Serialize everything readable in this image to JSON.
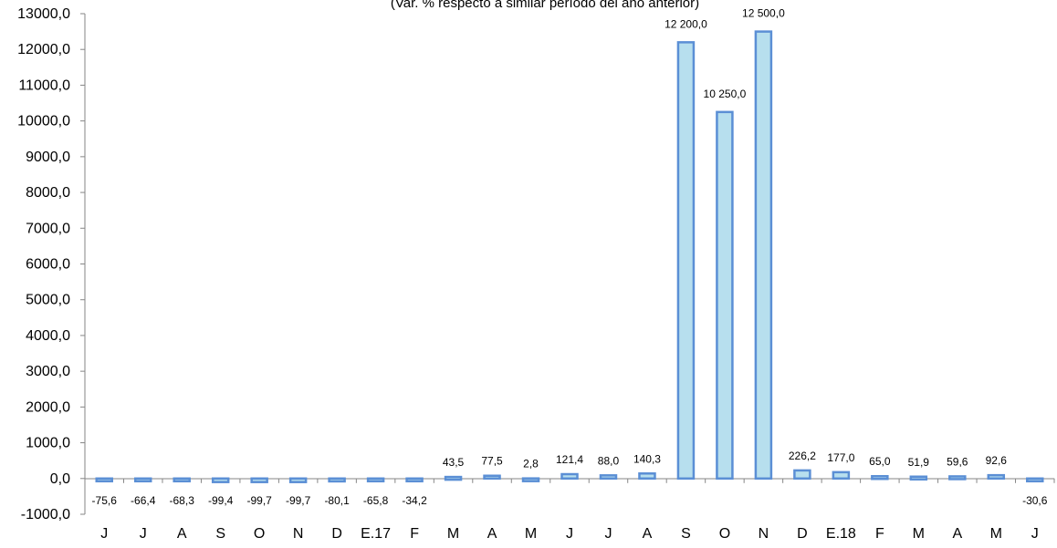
{
  "chart_data": {
    "type": "bar",
    "subtitle": "(Var. % respecto a similar período del año anterior)",
    "categories": [
      "J",
      "J",
      "A",
      "S",
      "O",
      "N",
      "D",
      "E.17",
      "F",
      "M",
      "A",
      "M",
      "J",
      "J",
      "A",
      "S",
      "O",
      "N",
      "D",
      "E.18",
      "F",
      "M",
      "A",
      "M",
      "J"
    ],
    "values": [
      -75.6,
      -66.4,
      -68.3,
      -99.4,
      -99.7,
      -99.7,
      -80.1,
      -65.8,
      -34.2,
      43.5,
      77.5,
      2.8,
      121.4,
      88.0,
      140.3,
      12200.0,
      10250.0,
      12500.0,
      226.2,
      177.0,
      65.0,
      51.9,
      59.6,
      92.6,
      -30.6
    ],
    "data_labels": [
      "-75,6",
      "-66,4",
      "-68,3",
      "-99,4",
      "-99,7",
      "-99,7",
      "-80,1",
      "-65,8",
      "-34,2",
      "43,5",
      "77,5",
      "2,8",
      "121,4",
      "88,0",
      "140,3",
      "12 200,0",
      "10 250,0",
      "12 500,0",
      "226,2",
      "177,0",
      "65,0",
      "51,9",
      "59,6",
      "92,6",
      "-30,6"
    ],
    "yticks": [
      "-1000,0",
      "0,0",
      "1000,0",
      "2000,0",
      "3000,0",
      "4000,0",
      "5000,0",
      "6000,0",
      "7000,0",
      "8000,0",
      "9000,0",
      "10000,0",
      "11000,0",
      "12000,0",
      "13000,0"
    ],
    "ylim": [
      -1000,
      13000
    ],
    "grid": false,
    "colors": {
      "bar_fill": "#b7dfee",
      "bar_stroke": "#5b8fd5",
      "axis": "#868686"
    }
  }
}
